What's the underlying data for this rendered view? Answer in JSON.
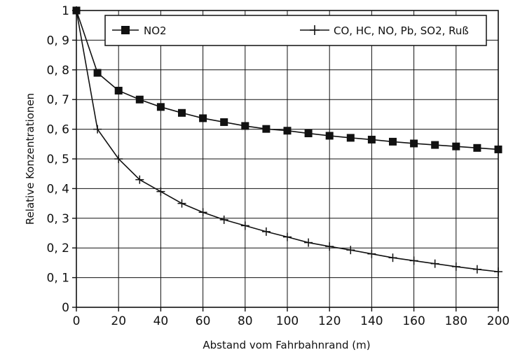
{
  "chart_data": {
    "type": "line",
    "title": "",
    "xlabel": "Abstand vom Fahrbahnrand (m)",
    "ylabel": "Relative Konzentrationen",
    "xlim": [
      0,
      200
    ],
    "ylim": [
      0,
      1
    ],
    "grid": true,
    "legend_position": "top",
    "x_ticks": [
      0,
      20,
      40,
      60,
      80,
      100,
      120,
      140,
      160,
      180,
      200
    ],
    "x_tick_labels": [
      "0",
      "20",
      "40",
      "60",
      "80",
      "100",
      "120",
      "140",
      "160",
      "180",
      "200"
    ],
    "y_ticks": [
      0,
      0.1,
      0.2,
      0.3,
      0.4,
      0.5,
      0.6,
      0.7,
      0.8,
      0.9,
      1
    ],
    "y_tick_labels": [
      "0",
      "0, 1",
      "0, 2",
      "0, 3",
      "0, 4",
      "0, 5",
      "0, 6",
      "0, 7",
      "0, 8",
      "0, 9",
      "1"
    ],
    "x": [
      0,
      10,
      20,
      30,
      40,
      50,
      60,
      70,
      80,
      90,
      100,
      110,
      120,
      130,
      140,
      150,
      160,
      170,
      180,
      190,
      200
    ],
    "series": [
      {
        "name": "NO2",
        "marker": "square",
        "values": [
          1.0,
          0.79,
          0.73,
          0.7,
          0.675,
          0.655,
          0.637,
          0.624,
          0.611,
          0.601,
          0.595,
          0.586,
          0.578,
          0.571,
          0.565,
          0.558,
          0.552,
          0.547,
          0.542,
          0.537,
          0.532
        ]
      },
      {
        "name": "CO, HC, NO, Pb, SO2, Ruß",
        "marker": "plus",
        "values": [
          1.0,
          0.6,
          0.5,
          0.43,
          0.39,
          0.35,
          0.32,
          0.295,
          0.275,
          0.255,
          0.237,
          0.218,
          0.205,
          0.193,
          0.18,
          0.167,
          0.157,
          0.147,
          0.137,
          0.128,
          0.12
        ]
      }
    ]
  }
}
